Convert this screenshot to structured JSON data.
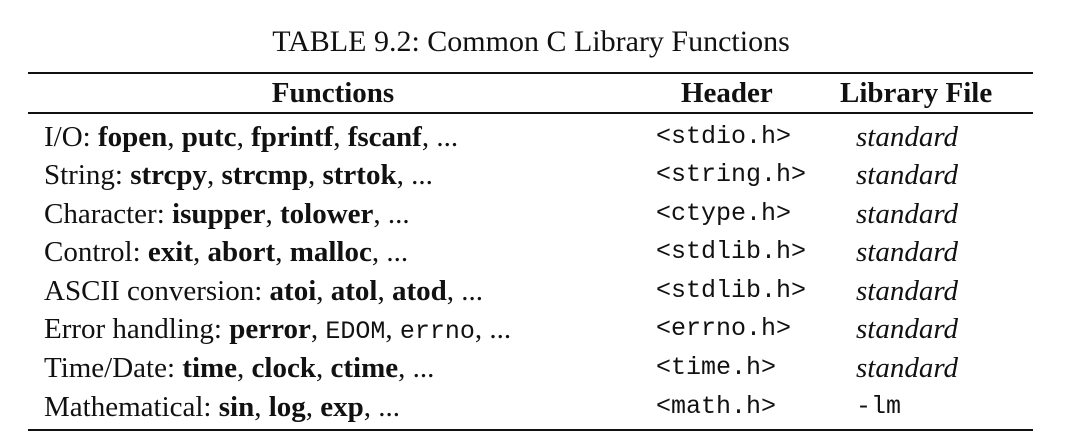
{
  "caption": "TABLE 9.2: Common C Library Functions",
  "columns": {
    "functions": "Functions",
    "header": "Header",
    "library": "Library File"
  },
  "rows": [
    {
      "category": "I/O: ",
      "items": [
        {
          "text": "fopen",
          "style": "bold"
        },
        {
          "text": "putc",
          "style": "bold"
        },
        {
          "text": "fprintf",
          "style": "bold"
        },
        {
          "text": "fscanf",
          "style": "bold"
        }
      ],
      "header": "<stdio.h>",
      "library": "standard",
      "library_style": "italic"
    },
    {
      "category": "String: ",
      "items": [
        {
          "text": "strcpy",
          "style": "bold"
        },
        {
          "text": "strcmp",
          "style": "bold"
        },
        {
          "text": "strtok",
          "style": "bold"
        }
      ],
      "header": "<string.h>",
      "library": "standard",
      "library_style": "italic"
    },
    {
      "category": "Character: ",
      "items": [
        {
          "text": "isupper",
          "style": "bold"
        },
        {
          "text": "tolower",
          "style": "bold"
        }
      ],
      "header": "<ctype.h>",
      "library": "standard",
      "library_style": "italic"
    },
    {
      "category": "Control: ",
      "items": [
        {
          "text": "exit",
          "style": "bold"
        },
        {
          "text": "abort",
          "style": "bold"
        },
        {
          "text": "malloc",
          "style": "bold"
        }
      ],
      "header": "<stdlib.h>",
      "library": "standard",
      "library_style": "italic"
    },
    {
      "category": "ASCII conversion: ",
      "items": [
        {
          "text": "atoi",
          "style": "bold"
        },
        {
          "text": "atol",
          "style": "bold"
        },
        {
          "text": "atod",
          "style": "bold"
        }
      ],
      "header": "<stdlib.h>",
      "library": "standard",
      "library_style": "italic"
    },
    {
      "category": "Error handling: ",
      "items": [
        {
          "text": "perror",
          "style": "bold"
        },
        {
          "text": "EDOM",
          "style": "mono"
        },
        {
          "text": "errno",
          "style": "mono"
        }
      ],
      "header": "<errno.h>",
      "library": "standard",
      "library_style": "italic"
    },
    {
      "category": "Time/Date: ",
      "items": [
        {
          "text": "time",
          "style": "bold"
        },
        {
          "text": "clock",
          "style": "bold"
        },
        {
          "text": "ctime",
          "style": "bold"
        }
      ],
      "header": "<time.h>",
      "library": "standard",
      "library_style": "italic"
    },
    {
      "category": "Mathematical: ",
      "items": [
        {
          "text": "sin",
          "style": "bold"
        },
        {
          "text": "log",
          "style": "bold"
        },
        {
          "text": "exp",
          "style": "bold"
        }
      ],
      "header": "<math.h>",
      "library": "-lm",
      "library_style": "mono"
    }
  ],
  "separator": ", ",
  "ellipsis": ", ..."
}
